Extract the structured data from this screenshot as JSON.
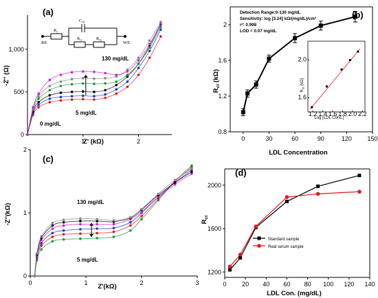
{
  "colors": {
    "black": "#000000",
    "red": "#e8141c",
    "blue": "#1a3cc8",
    "green": "#1a9a3a",
    "magenta": "#d21ed2",
    "grey": "#8a8a8a"
  },
  "panels": {
    "a": {
      "label": "(a)",
      "xlabel": "Z' (kΩ)",
      "ylabel": "-Z'' (Ω)",
      "ann_high": "130 mg/dL",
      "ann_mid": "5 mg/dL",
      "ann_low": "0 mg/dL",
      "circuit": {
        "re": "RE",
        "we": "WE",
        "rs": "R",
        "rs_sub": "s",
        "cdl": "C",
        "cdl_sub": "dl",
        "rct": "R",
        "rct_sub": "ct",
        "rm": "R",
        "rm_sub": "m"
      }
    },
    "b": {
      "label": "(b)",
      "xlabel": "LDL Concentration",
      "ylabel": "R",
      "ylabel_sub": "ct",
      "ylabel_unit": " (kΩ)",
      "info": [
        "Detection Range:0-130 mg/dL",
        "Sensitivity: log [3.24] kΩ/(mg/dL)/cm²",
        "r²: 0.998",
        "LOD = 0.07 mg/dL"
      ],
      "inset": {
        "xlabel": "Log [LDL Conc.]",
        "ylabel": "R",
        "ylabel_sub": "ct",
        "ylabel_unit": " (kΩ)"
      }
    },
    "c": {
      "label": "(c)",
      "xlabel": "Z'(kΩ)",
      "ylabel": "-Z''(kΩ)",
      "ann_high": "130 mg/dL",
      "ann_low": "5 mg/dL"
    },
    "d": {
      "label": "(d)",
      "xlabel": "LDL Con. (mg/dL)",
      "ylabel": "R",
      "ylabel_sub": "ct",
      "legend": [
        "Standard sample",
        "Real serum sample"
      ]
    }
  },
  "chart_data": [
    {
      "panel": "a",
      "type": "scatter",
      "xlabel": "Z' (kΩ)",
      "ylabel": "-Z'' (Ω)",
      "xlim": [
        0,
        2.6
      ],
      "ylim": [
        0,
        1400
      ],
      "xticks": [
        1,
        2
      ],
      "yticks": [
        0,
        500,
        "1,000"
      ],
      "series": [
        {
          "color": "red",
          "values": [
            [
              0,
              0
            ],
            [
              0.1,
              230
            ],
            [
              0.2,
              320
            ],
            [
              0.4,
              380
            ],
            [
              0.6,
              400
            ],
            [
              0.8,
              410
            ],
            [
              1.0,
              415
            ],
            [
              1.2,
              410
            ],
            [
              1.4,
              430
            ],
            [
              1.6,
              480
            ],
            [
              1.8,
              560
            ],
            [
              2.0,
              700
            ],
            [
              2.2,
              900
            ],
            [
              2.4,
              1150
            ]
          ]
        },
        {
          "color": "blue",
          "values": [
            [
              0,
              0
            ],
            [
              0.1,
              250
            ],
            [
              0.2,
              350
            ],
            [
              0.4,
              420
            ],
            [
              0.6,
              440
            ],
            [
              0.8,
              450
            ],
            [
              1.0,
              455
            ],
            [
              1.2,
              450
            ],
            [
              1.4,
              470
            ],
            [
              1.6,
              530
            ],
            [
              1.8,
              620
            ],
            [
              2.0,
              780
            ],
            [
              2.2,
              980
            ],
            [
              2.4,
              1230
            ]
          ]
        },
        {
          "color": "black",
          "values": [
            [
              0,
              0
            ],
            [
              0.1,
              270
            ],
            [
              0.2,
              380
            ],
            [
              0.4,
              460
            ],
            [
              0.6,
              490
            ],
            [
              0.8,
              500
            ],
            [
              1.0,
              505
            ],
            [
              1.2,
              500
            ],
            [
              1.4,
              520
            ],
            [
              1.6,
              580
            ],
            [
              1.8,
              680
            ],
            [
              2.0,
              830
            ],
            [
              2.2,
              1040
            ],
            [
              2.4,
              1290
            ]
          ]
        },
        {
          "color": "green",
          "values": [
            [
              0,
              0
            ],
            [
              0.1,
              290
            ],
            [
              0.2,
              420
            ],
            [
              0.4,
              520
            ],
            [
              0.6,
              570
            ],
            [
              0.8,
              590
            ],
            [
              1.0,
              600
            ],
            [
              1.2,
              595
            ],
            [
              1.4,
              600
            ],
            [
              1.6,
              620
            ],
            [
              1.8,
              700
            ],
            [
              2.0,
              830
            ],
            [
              2.2,
              1020
            ],
            [
              2.4,
              1260
            ]
          ]
        },
        {
          "color": "grey",
          "values": [
            [
              0,
              0
            ],
            [
              0.1,
              300
            ],
            [
              0.2,
              450
            ],
            [
              0.4,
              570
            ],
            [
              0.6,
              620
            ],
            [
              0.8,
              650
            ],
            [
              1.0,
              660
            ],
            [
              1.2,
              655
            ],
            [
              1.4,
              660
            ],
            [
              1.6,
              680
            ],
            [
              1.8,
              760
            ],
            [
              2.0,
              900
            ],
            [
              2.2,
              1100
            ],
            [
              2.4,
              1320
            ]
          ]
        },
        {
          "color": "magenta",
          "values": [
            [
              0,
              0
            ],
            [
              0.1,
              320
            ],
            [
              0.2,
              480
            ],
            [
              0.4,
              640
            ],
            [
              0.6,
              700
            ],
            [
              0.8,
              730
            ],
            [
              1.0,
              740
            ],
            [
              1.2,
              735
            ],
            [
              1.4,
              720
            ],
            [
              1.6,
              700
            ],
            [
              1.8,
              740
            ],
            [
              2.0,
              870
            ],
            [
              2.2,
              1060
            ],
            [
              2.4,
              1300
            ]
          ]
        }
      ]
    },
    {
      "panel": "b",
      "type": "line",
      "xlabel": "LDL Concentration",
      "ylabel": "Rct (kΩ)",
      "xlim": [
        -15,
        150
      ],
      "ylim": [
        0.8,
        2.2
      ],
      "xticks": [
        0,
        30,
        60,
        90,
        120,
        150
      ],
      "yticks": [
        0.8,
        1.2,
        1.6,
        2.0
      ],
      "x": [
        0,
        5,
        15,
        30,
        60,
        90,
        130
      ],
      "values": [
        1.02,
        1.23,
        1.33,
        1.62,
        1.85,
        1.99,
        2.09
      ],
      "errors": [
        0.04,
        0.04,
        0.04,
        0.04,
        0.05,
        0.05,
        0.06
      ],
      "inset": {
        "type": "scatter",
        "xlabel": "Log [LDL Conc.]",
        "ylabel": "Rct (kΩ)",
        "xlim": [
          1.1,
          2.25
        ],
        "ylim": [
          1.45,
          2.2
        ],
        "xticks": [
          1.2,
          1.4,
          1.6,
          1.8,
          2.0,
          2.2
        ],
        "yticks": [
          1.6,
          2.0
        ],
        "x": [
          1.18,
          1.48,
          1.78,
          1.95,
          2.11
        ],
        "values": [
          1.5,
          1.72,
          1.9,
          2.0,
          2.09
        ],
        "fit": [
          [
            1.15,
            1.48
          ],
          [
            2.15,
            2.12
          ]
        ]
      }
    },
    {
      "panel": "c",
      "type": "scatter",
      "xlabel": "Z'(kΩ)",
      "ylabel": "-Z''(kΩ)",
      "xlim": [
        0,
        3
      ],
      "ylim": [
        0,
        2
      ],
      "xticks": [
        0,
        1,
        2,
        3
      ],
      "yticks": [
        0,
        1,
        2
      ],
      "series": [
        {
          "color": "green",
          "values": [
            [
              0.08,
              0
            ],
            [
              0.12,
              0.25
            ],
            [
              0.2,
              0.42
            ],
            [
              0.4,
              0.55
            ],
            [
              0.6,
              0.58
            ],
            [
              0.9,
              0.59
            ],
            [
              1.2,
              0.6
            ],
            [
              1.5,
              0.62
            ],
            [
              1.8,
              0.72
            ],
            [
              2.0,
              0.9
            ],
            [
              2.3,
              1.2
            ],
            [
              2.6,
              1.5
            ],
            [
              2.9,
              1.75
            ]
          ]
        },
        {
          "color": "red",
          "values": [
            [
              0.08,
              0
            ],
            [
              0.12,
              0.28
            ],
            [
              0.2,
              0.48
            ],
            [
              0.4,
              0.62
            ],
            [
              0.6,
              0.66
            ],
            [
              0.9,
              0.67
            ],
            [
              1.2,
              0.68
            ],
            [
              1.5,
              0.7
            ],
            [
              1.8,
              0.8
            ],
            [
              2.0,
              0.95
            ],
            [
              2.3,
              1.22
            ],
            [
              2.6,
              1.5
            ],
            [
              2.9,
              1.72
            ]
          ]
        },
        {
          "color": "blue",
          "values": [
            [
              0.08,
              0
            ],
            [
              0.12,
              0.3
            ],
            [
              0.2,
              0.52
            ],
            [
              0.4,
              0.68
            ],
            [
              0.6,
              0.72
            ],
            [
              0.9,
              0.74
            ],
            [
              1.2,
              0.75
            ],
            [
              1.5,
              0.76
            ],
            [
              1.8,
              0.85
            ],
            [
              2.0,
              1.0
            ],
            [
              2.3,
              1.25
            ],
            [
              2.6,
              1.48
            ],
            [
              2.9,
              1.68
            ]
          ]
        },
        {
          "color": "magenta",
          "values": [
            [
              0.08,
              0
            ],
            [
              0.12,
              0.32
            ],
            [
              0.2,
              0.57
            ],
            [
              0.4,
              0.75
            ],
            [
              0.6,
              0.8
            ],
            [
              0.9,
              0.82
            ],
            [
              1.2,
              0.82
            ],
            [
              1.5,
              0.82
            ],
            [
              1.8,
              0.9
            ],
            [
              2.0,
              1.02
            ],
            [
              2.3,
              1.25
            ],
            [
              2.6,
              1.45
            ],
            [
              2.9,
              1.62
            ]
          ]
        },
        {
          "color": "black",
          "values": [
            [
              0.08,
              0
            ],
            [
              0.12,
              0.34
            ],
            [
              0.2,
              0.6
            ],
            [
              0.4,
              0.8
            ],
            [
              0.6,
              0.85
            ],
            [
              0.9,
              0.87
            ],
            [
              1.2,
              0.87
            ],
            [
              1.5,
              0.86
            ],
            [
              1.8,
              0.92
            ],
            [
              2.0,
              1.05
            ],
            [
              2.3,
              1.28
            ],
            [
              2.6,
              1.48
            ],
            [
              2.9,
              1.65
            ]
          ]
        },
        {
          "color": "grey",
          "values": [
            [
              0.08,
              0
            ],
            [
              0.12,
              0.36
            ],
            [
              0.2,
              0.63
            ],
            [
              0.4,
              0.84
            ],
            [
              0.6,
              0.89
            ],
            [
              0.9,
              0.91
            ],
            [
              1.2,
              0.9
            ],
            [
              1.5,
              0.88
            ],
            [
              1.8,
              0.93
            ],
            [
              2.0,
              1.06
            ],
            [
              2.3,
              1.3
            ],
            [
              2.6,
              1.52
            ],
            [
              2.9,
              1.7
            ]
          ]
        }
      ]
    },
    {
      "panel": "d",
      "type": "line",
      "xlabel": "LDL Con. (mg/dL)",
      "ylabel": "Rct",
      "xlim": [
        0,
        140
      ],
      "ylim": [
        1150,
        2150
      ],
      "xticks": [
        0,
        20,
        40,
        60,
        80,
        100,
        120,
        140
      ],
      "yticks": [
        1200,
        1600,
        2000
      ],
      "series": [
        {
          "name": "Standard sample",
          "color": "black",
          "x": [
            5,
            15,
            30,
            60,
            90,
            130
          ],
          "values": [
            1220,
            1330,
            1610,
            1850,
            1990,
            2090
          ]
        },
        {
          "name": "Real serum sample",
          "color": "red",
          "x": [
            5,
            15,
            30,
            60,
            90,
            130
          ],
          "values": [
            1250,
            1360,
            1620,
            1890,
            1920,
            1940
          ]
        }
      ]
    }
  ]
}
